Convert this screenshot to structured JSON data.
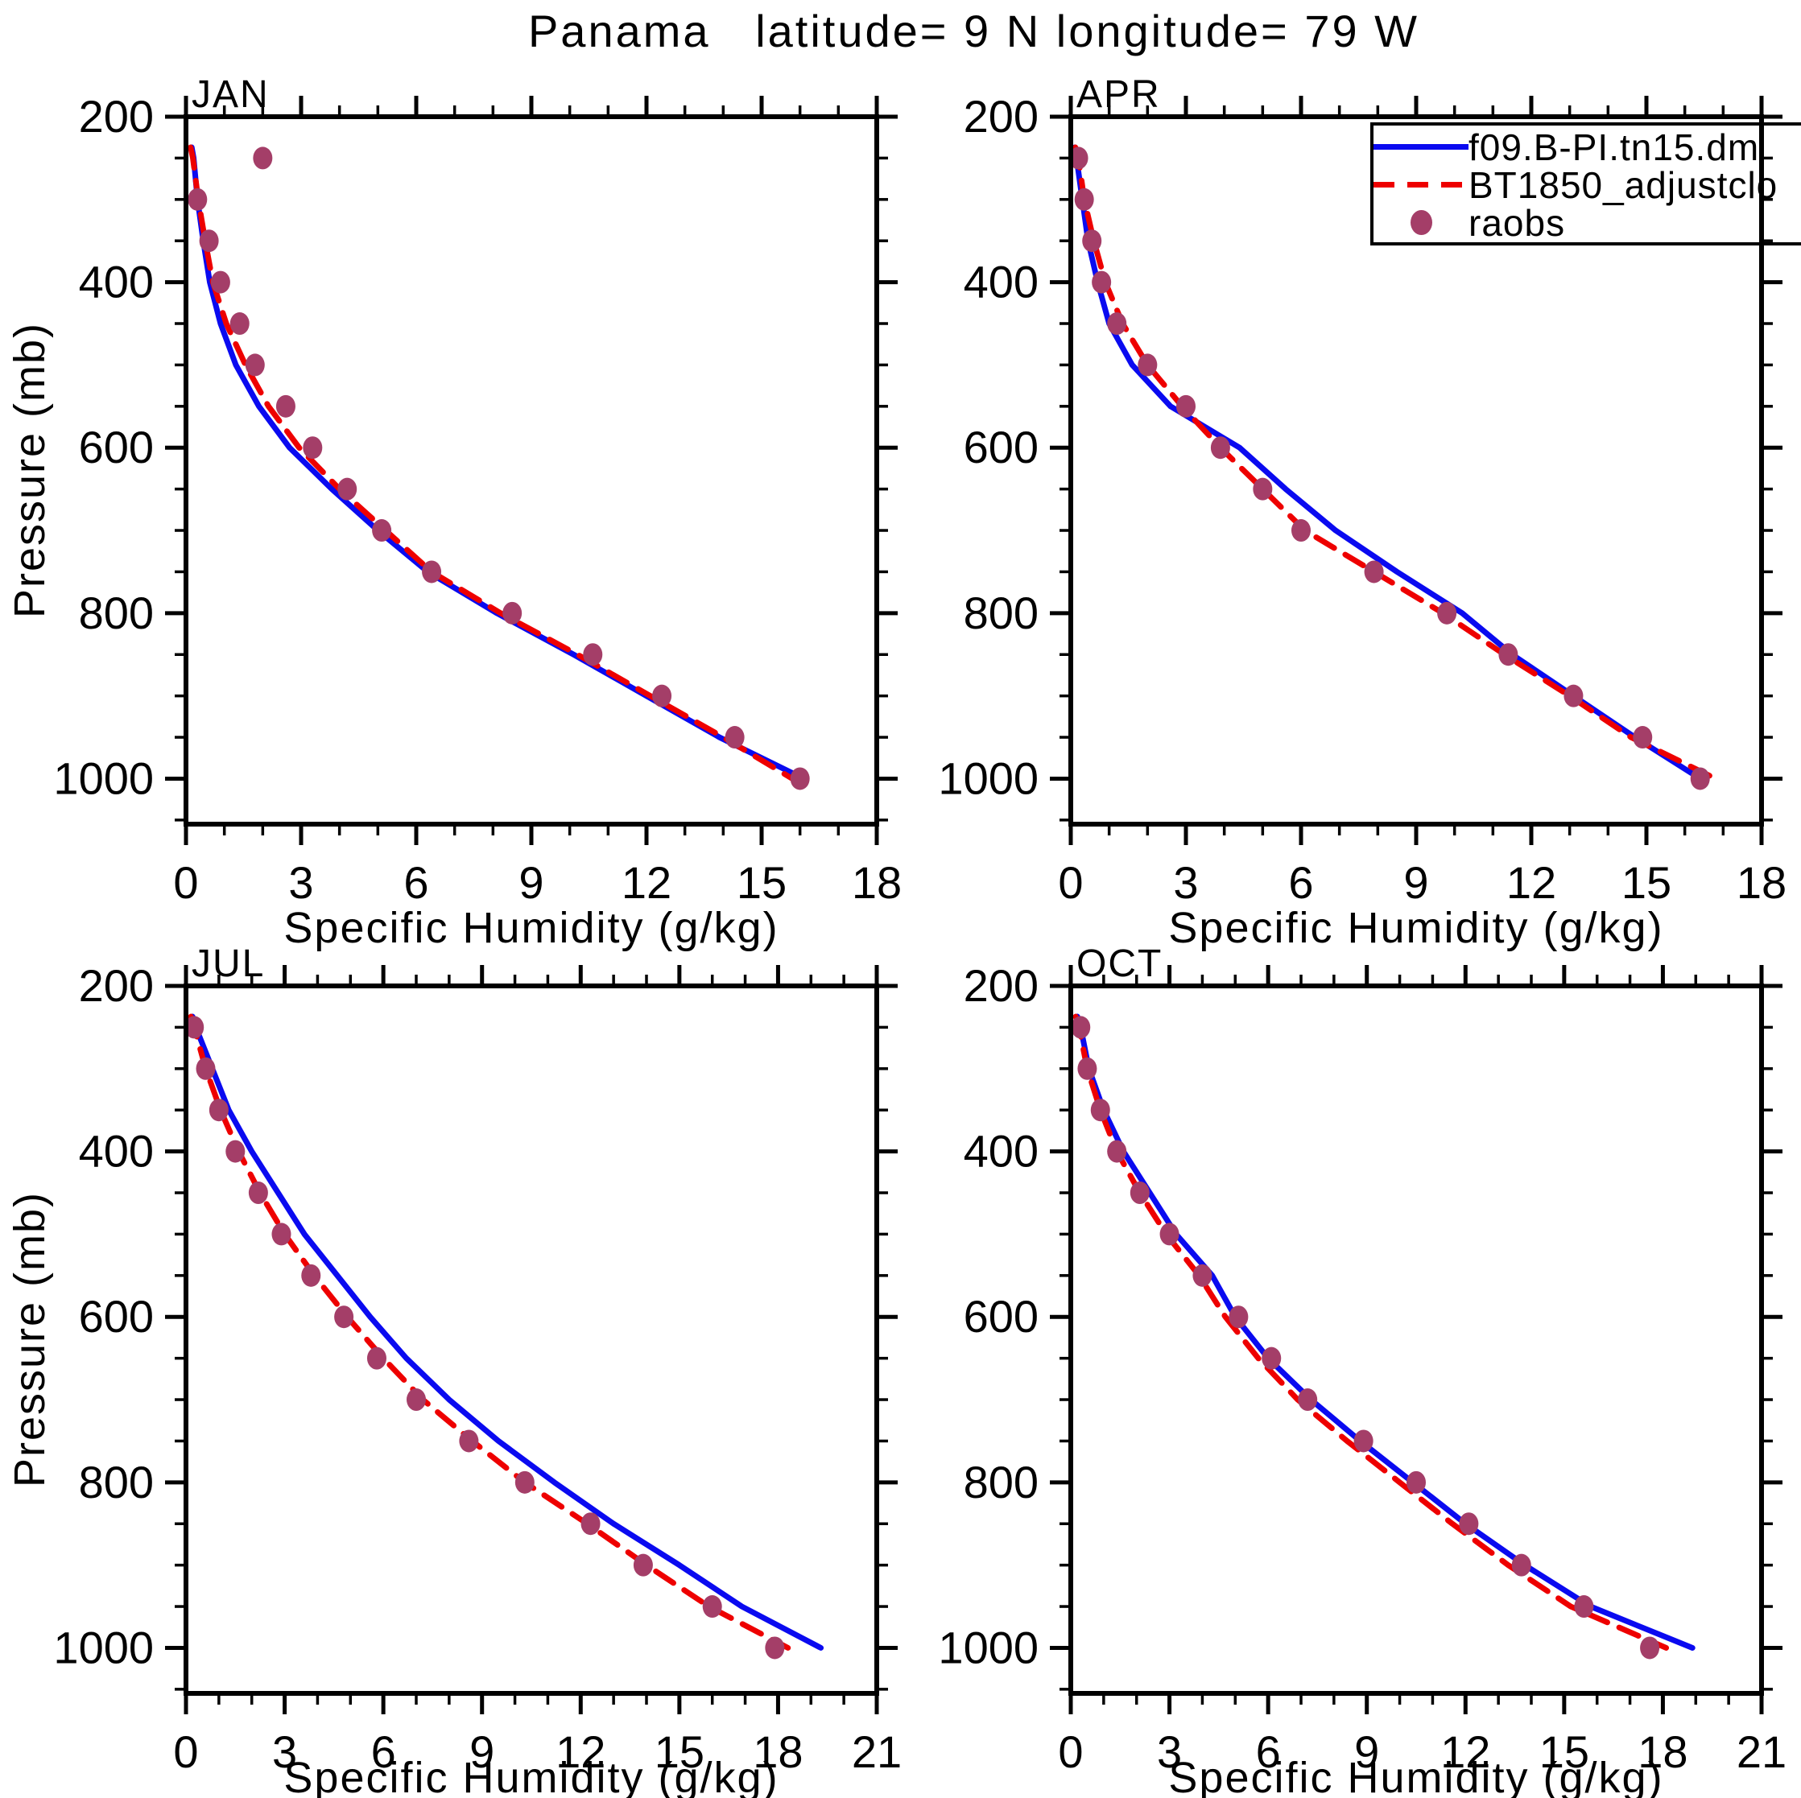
{
  "title": "Panama   latitude= 9 N longitude= 79 W",
  "axes": {
    "xlabel": "Specific Humidity (g/kg)",
    "ylabel": "Pressure (mb)"
  },
  "colors": {
    "model_line": "#0a0af0",
    "obs_line": "#ee0000",
    "raobs_dot": "#a43e68",
    "axis": "#000000"
  },
  "legend": {
    "entries": [
      {
        "label": "f09.B-PI.tn15.dm",
        "style": "solid-line",
        "color": "#0a0af0"
      },
      {
        "label": "BT1850_adjustclo",
        "style": "dashed-line",
        "color": "#ee0000"
      },
      {
        "label": "raobs",
        "style": "dot",
        "color": "#a43e68"
      }
    ]
  },
  "chart_data": [
    {
      "type": "line",
      "panel": "JAN",
      "xlabel": "Specific Humidity (g/kg)",
      "ylabel": "Pressure (mb)",
      "xlim": [
        0,
        18
      ],
      "xticks_major": [
        0,
        3,
        6,
        9,
        12,
        15,
        18
      ],
      "xticks_minor_step": 1,
      "ylim_mb": [
        200,
        1055
      ],
      "yticks_major": [
        200,
        400,
        600,
        800,
        1000
      ],
      "yticks_minor_step": 50,
      "y_axis_reversed": true,
      "grid": false,
      "series": [
        {
          "name": "f09.B-PI.tn15.dm",
          "style": "solid",
          "color": "#0a0af0",
          "pressure_mb": [
            237,
            250,
            300,
            350,
            400,
            450,
            500,
            550,
            600,
            650,
            700,
            750,
            800,
            850,
            900,
            950,
            1000
          ],
          "q_g_per_kg": [
            0.15,
            0.2,
            0.3,
            0.45,
            0.62,
            0.9,
            1.3,
            1.9,
            2.7,
            3.8,
            5.0,
            6.3,
            8.1,
            10.1,
            12.0,
            13.9,
            16.1
          ]
        },
        {
          "name": "BT1850_adjustclo",
          "style": "dashed",
          "color": "#ee0000",
          "pressure_mb": [
            237,
            250,
            300,
            350,
            400,
            450,
            500,
            550,
            600,
            650,
            700,
            750,
            800,
            850,
            900,
            950,
            1000
          ],
          "q_g_per_kg": [
            0.12,
            0.18,
            0.32,
            0.5,
            0.7,
            1.05,
            1.55,
            2.15,
            2.95,
            4.0,
            5.2,
            6.4,
            8.2,
            10.2,
            12.1,
            14.0,
            15.8
          ]
        },
        {
          "name": "raobs",
          "style": "points",
          "color": "#a43e68",
          "pressure_mb": [
            250,
            300,
            350,
            400,
            450,
            500,
            550,
            600,
            650,
            700,
            750,
            800,
            850,
            900,
            950,
            1000
          ],
          "q_g_per_kg": [
            2.0,
            0.3,
            0.6,
            0.9,
            1.4,
            1.8,
            2.6,
            3.3,
            4.2,
            5.1,
            6.4,
            8.5,
            10.6,
            12.4,
            14.3,
            16.0
          ]
        }
      ]
    },
    {
      "type": "line",
      "panel": "APR",
      "xlabel": "Specific Humidity (g/kg)",
      "ylabel": "Pressure (mb)",
      "xlim": [
        0,
        18
      ],
      "xticks_major": [
        0,
        3,
        6,
        9,
        12,
        15,
        18
      ],
      "xticks_minor_step": 1,
      "ylim_mb": [
        200,
        1055
      ],
      "yticks_major": [
        200,
        400,
        600,
        800,
        1000
      ],
      "yticks_minor_step": 50,
      "y_axis_reversed": true,
      "grid": false,
      "series": [
        {
          "name": "f09.B-PI.tn15.dm",
          "style": "solid",
          "color": "#0a0af0",
          "pressure_mb": [
            237,
            250,
            300,
            350,
            400,
            450,
            500,
            550,
            600,
            650,
            700,
            750,
            800,
            850,
            900,
            950,
            1000
          ],
          "q_g_per_kg": [
            0.1,
            0.15,
            0.3,
            0.45,
            0.7,
            1.0,
            1.6,
            2.6,
            4.4,
            5.6,
            6.9,
            8.5,
            10.2,
            11.5,
            13.1,
            14.7,
            16.4
          ]
        },
        {
          "name": "BT1850_adjustclo",
          "style": "dashed",
          "color": "#ee0000",
          "pressure_mb": [
            237,
            250,
            300,
            350,
            400,
            450,
            500,
            550,
            600,
            650,
            700,
            750,
            800,
            850,
            900,
            950,
            1000
          ],
          "q_g_per_kg": [
            0.12,
            0.2,
            0.35,
            0.6,
            0.9,
            1.35,
            2.0,
            2.9,
            3.9,
            5.0,
            6.1,
            7.9,
            9.7,
            11.3,
            13.0,
            14.6,
            16.8
          ]
        },
        {
          "name": "raobs",
          "style": "points",
          "color": "#a43e68",
          "pressure_mb": [
            250,
            300,
            350,
            400,
            450,
            500,
            550,
            600,
            650,
            700,
            750,
            800,
            850,
            900,
            950,
            1000
          ],
          "q_g_per_kg": [
            0.2,
            0.35,
            0.55,
            0.8,
            1.2,
            2.0,
            3.0,
            3.9,
            5.0,
            6.0,
            7.9,
            9.8,
            11.4,
            13.1,
            14.9,
            16.4
          ]
        }
      ]
    },
    {
      "type": "line",
      "panel": "JUL",
      "xlabel": "Specific Humidity (g/kg)",
      "ylabel": "Pressure (mb)",
      "xlim": [
        0,
        21
      ],
      "xticks_major": [
        0,
        3,
        6,
        9,
        12,
        15,
        18,
        21
      ],
      "xticks_minor_step": 1,
      "ylim_mb": [
        200,
        1055
      ],
      "yticks_major": [
        200,
        400,
        600,
        800,
        1000
      ],
      "yticks_minor_step": 50,
      "y_axis_reversed": true,
      "grid": false,
      "series": [
        {
          "name": "f09.B-PI.tn15.dm",
          "style": "solid",
          "color": "#0a0af0",
          "pressure_mb": [
            237,
            250,
            300,
            350,
            400,
            450,
            500,
            550,
            600,
            650,
            700,
            750,
            800,
            850,
            900,
            950,
            1000
          ],
          "q_g_per_kg": [
            0.2,
            0.3,
            0.8,
            1.3,
            2.0,
            2.8,
            3.6,
            4.6,
            5.6,
            6.7,
            8.0,
            9.5,
            11.2,
            13.0,
            15.0,
            16.9,
            19.3
          ]
        },
        {
          "name": "BT1850_adjustclo",
          "style": "dashed",
          "color": "#ee0000",
          "pressure_mb": [
            237,
            250,
            300,
            350,
            400,
            450,
            500,
            550,
            600,
            650,
            700,
            750,
            800,
            850,
            900,
            950,
            1000
          ],
          "q_g_per_kg": [
            0.15,
            0.25,
            0.6,
            1.05,
            1.6,
            2.25,
            3.0,
            3.9,
            4.9,
            6.0,
            7.2,
            8.7,
            10.3,
            12.2,
            14.0,
            15.9,
            18.3
          ]
        },
        {
          "name": "raobs",
          "style": "points",
          "color": "#a43e68",
          "pressure_mb": [
            250,
            300,
            350,
            400,
            450,
            500,
            550,
            600,
            650,
            700,
            750,
            800,
            850,
            900,
            950,
            1000
          ],
          "q_g_per_kg": [
            0.25,
            0.6,
            1.0,
            1.5,
            2.2,
            2.9,
            3.8,
            4.8,
            5.8,
            7.0,
            8.6,
            10.3,
            12.3,
            13.9,
            16.0,
            17.9
          ]
        }
      ]
    },
    {
      "type": "line",
      "panel": "OCT",
      "xlabel": "Specific Humidity (g/kg)",
      "ylabel": "Pressure (mb)",
      "xlim": [
        0,
        21
      ],
      "xticks_major": [
        0,
        3,
        6,
        9,
        12,
        15,
        18,
        21
      ],
      "xticks_minor_step": 1,
      "ylim_mb": [
        200,
        1055
      ],
      "yticks_major": [
        200,
        400,
        600,
        800,
        1000
      ],
      "yticks_minor_step": 50,
      "y_axis_reversed": true,
      "grid": false,
      "series": [
        {
          "name": "f09.B-PI.tn15.dm",
          "style": "solid",
          "color": "#0a0af0",
          "pressure_mb": [
            237,
            250,
            300,
            350,
            400,
            450,
            500,
            550,
            600,
            650,
            700,
            750,
            800,
            850,
            900,
            950,
            1000
          ],
          "q_g_per_kg": [
            0.2,
            0.3,
            0.55,
            1.0,
            1.6,
            2.4,
            3.2,
            4.3,
            5.0,
            6.0,
            7.3,
            8.8,
            10.4,
            12.0,
            13.8,
            15.8,
            18.9
          ]
        },
        {
          "name": "BT1850_adjustclo",
          "style": "dashed",
          "color": "#ee0000",
          "pressure_mb": [
            237,
            250,
            300,
            350,
            400,
            450,
            500,
            550,
            600,
            650,
            700,
            750,
            800,
            850,
            900,
            950,
            1000
          ],
          "q_g_per_kg": [
            0.15,
            0.25,
            0.5,
            0.9,
            1.4,
            2.1,
            2.9,
            3.9,
            4.7,
            5.7,
            6.9,
            8.4,
            10.0,
            11.6,
            13.3,
            15.2,
            18.1
          ]
        },
        {
          "name": "raobs",
          "style": "points",
          "color": "#a43e68",
          "pressure_mb": [
            250,
            300,
            350,
            400,
            450,
            500,
            550,
            600,
            650,
            700,
            750,
            800,
            850,
            900,
            950,
            1000
          ],
          "q_g_per_kg": [
            0.3,
            0.5,
            0.9,
            1.4,
            2.1,
            3.0,
            4.0,
            5.1,
            6.1,
            7.2,
            8.9,
            10.5,
            12.1,
            13.7,
            15.6,
            17.6
          ]
        }
      ]
    }
  ]
}
